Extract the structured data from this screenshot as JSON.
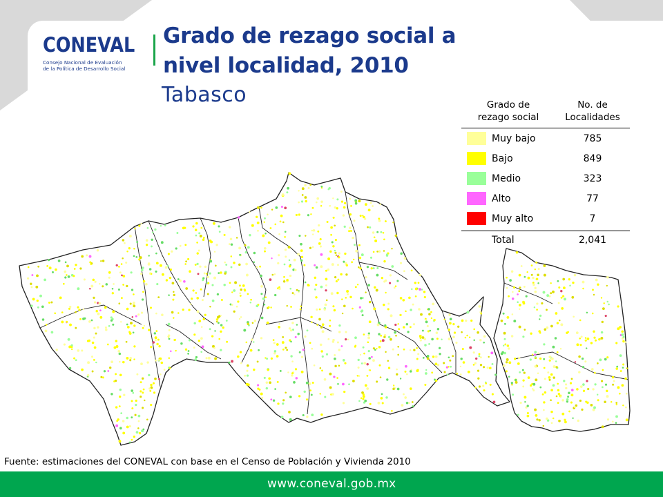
{
  "logo": {
    "wordmark": "CONEVAL",
    "subtitle_line1": "Consejo Nacional de Evaluación",
    "subtitle_line2": "de la Política de Desarrollo Social"
  },
  "title": {
    "line1": "Grado de rezago social a",
    "line2": "nivel localidad, 2010",
    "subtitle": "Tabasco"
  },
  "legend": {
    "header_col1_line1": "Grado de",
    "header_col1_line2": "rezago social",
    "header_col2_line1": "No. de",
    "header_col2_line2": "Localidades",
    "rows": [
      {
        "label": "Muy bajo",
        "count": "785",
        "color": "#ffff99"
      },
      {
        "label": "Bajo",
        "count": "849",
        "color": "#ffff00"
      },
      {
        "label": "Medio",
        "count": "323",
        "color": "#99ff99"
      },
      {
        "label": "Alto",
        "count": "77",
        "color": "#ff66ff"
      },
      {
        "label": "Muy alto",
        "count": "7",
        "color": "#ff0000"
      }
    ],
    "total_label": "Total",
    "total_count": "2,041"
  },
  "source": "Fuente: estimaciones del CONEVAL con base en el Censo de Población y Vivienda 2010",
  "footer": {
    "url": "www.coneval.gob.mx"
  },
  "colors": {
    "brand_blue": "#1b3a8c",
    "brand_green": "#00a64f"
  }
}
